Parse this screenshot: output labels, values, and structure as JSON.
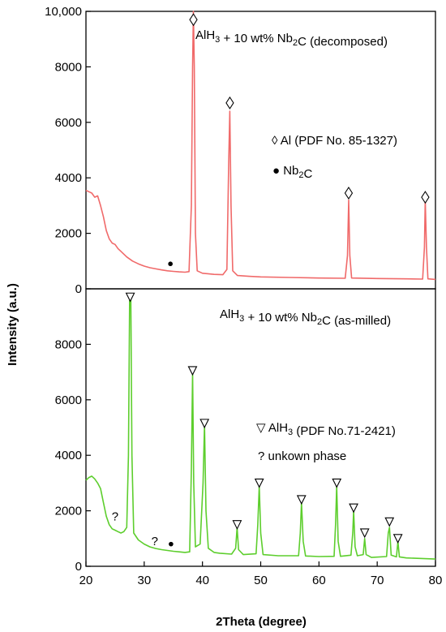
{
  "chart_data": [
    {
      "type": "line",
      "panel": "top",
      "xlabel": "2Theta (degree)",
      "ylabel": "Intensity (a.u.)",
      "xlim": [
        20,
        80
      ],
      "ylim": [
        0,
        10000
      ],
      "x_ticks": [
        "20",
        "30",
        "40",
        "50",
        "60",
        "70",
        "80"
      ],
      "y_ticks": [
        {
          "value": 0,
          "label": "0"
        },
        {
          "value": 2000,
          "label": "2000"
        },
        {
          "value": 4000,
          "label": "4000"
        },
        {
          "value": 6000,
          "label": "6000"
        },
        {
          "value": 8000,
          "label": "8000"
        },
        {
          "value": 10000,
          "label": "10,000"
        }
      ],
      "series": [
        {
          "color": "#f06a6a",
          "points": [
            [
              20.0,
              3550
            ],
            [
              20.5,
              3500
            ],
            [
              21.0,
              3450
            ],
            [
              21.5,
              3300
            ],
            [
              22.0,
              3350
            ],
            [
              22.5,
              3000
            ],
            [
              23.0,
              2600
            ],
            [
              23.5,
              2100
            ],
            [
              24.0,
              1800
            ],
            [
              24.5,
              1650
            ],
            [
              25.0,
              1600
            ],
            [
              25.5,
              1450
            ],
            [
              26.0,
              1350
            ],
            [
              27.0,
              1150
            ],
            [
              28.0,
              1000
            ],
            [
              29.0,
              900
            ],
            [
              30.0,
              820
            ],
            [
              31.0,
              760
            ],
            [
              32.0,
              720
            ],
            [
              33.0,
              680
            ],
            [
              34.0,
              650
            ],
            [
              35.0,
              630
            ],
            [
              36.0,
              610
            ],
            [
              37.0,
              600
            ],
            [
              37.7,
              620
            ],
            [
              38.1,
              3000
            ],
            [
              38.3,
              8000
            ],
            [
              38.45,
              10000
            ],
            [
              38.6,
              8000
            ],
            [
              38.8,
              2000
            ],
            [
              39.1,
              650
            ],
            [
              40.0,
              560
            ],
            [
              42.0,
              520
            ],
            [
              43.5,
              510
            ],
            [
              44.2,
              700
            ],
            [
              44.5,
              4500
            ],
            [
              44.7,
              6400
            ],
            [
              44.9,
              3000
            ],
            [
              45.2,
              650
            ],
            [
              46.0,
              480
            ],
            [
              48.0,
              450
            ],
            [
              50.0,
              430
            ],
            [
              55.0,
              410
            ],
            [
              60.0,
              390
            ],
            [
              64.5,
              380
            ],
            [
              64.9,
              1200
            ],
            [
              65.1,
              3200
            ],
            [
              65.3,
              1200
            ],
            [
              65.6,
              390
            ],
            [
              70.0,
              370
            ],
            [
              75.0,
              360
            ],
            [
              77.8,
              350
            ],
            [
              78.1,
              1500
            ],
            [
              78.25,
              3200
            ],
            [
              78.45,
              1500
            ],
            [
              78.7,
              360
            ],
            [
              80.0,
              340
            ]
          ]
        }
      ],
      "annotations": [
        {
          "marker": "◊",
          "x": 38.45,
          "y": 9700
        },
        {
          "marker": "◊",
          "x": 44.7,
          "y": 6700
        },
        {
          "marker": "◊",
          "x": 65.1,
          "y": 3450
        },
        {
          "marker": "◊",
          "x": 78.25,
          "y": 3300
        },
        {
          "marker": "●",
          "x": 34.5,
          "y": 900
        }
      ],
      "labels": {
        "sample": "AlH₃ + 10 wt% Nb₂C (decomposed)",
        "phase1": "◊ Al (PDF No. 85-1327)",
        "phase2": "●  Nb₂C"
      }
    },
    {
      "type": "line",
      "panel": "bottom",
      "xlabel": "2Theta (degree)",
      "ylabel": "Intensity (a.u.)",
      "xlim": [
        20,
        80
      ],
      "ylim": [
        0,
        10000
      ],
      "x_ticks": [
        "20",
        "30",
        "40",
        "50",
        "60",
        "70",
        "80"
      ],
      "y_ticks": [
        {
          "value": 0,
          "label": "0"
        },
        {
          "value": 2000,
          "label": "2000"
        },
        {
          "value": 4000,
          "label": "4000"
        },
        {
          "value": 6000,
          "label": "6000"
        },
        {
          "value": 8000,
          "label": "8000"
        }
      ],
      "series": [
        {
          "color": "#5dce2d",
          "points": [
            [
              20.0,
              3100
            ],
            [
              20.5,
              3200
            ],
            [
              21.0,
              3250
            ],
            [
              21.5,
              3150
            ],
            [
              22.0,
              3000
            ],
            [
              22.5,
              2800
            ],
            [
              23.0,
              2300
            ],
            [
              23.5,
              1800
            ],
            [
              24.0,
              1500
            ],
            [
              24.5,
              1350
            ],
            [
              25.0,
              1300
            ],
            [
              25.5,
              1250
            ],
            [
              26.0,
              1200
            ],
            [
              26.5,
              1250
            ],
            [
              27.0,
              1400
            ],
            [
              27.3,
              4000
            ],
            [
              27.5,
              9800
            ],
            [
              27.7,
              9800
            ],
            [
              27.9,
              4000
            ],
            [
              28.2,
              1200
            ],
            [
              29.0,
              950
            ],
            [
              30.0,
              800
            ],
            [
              31.0,
              700
            ],
            [
              32.0,
              640
            ],
            [
              33.0,
              600
            ],
            [
              34.0,
              570
            ],
            [
              35.0,
              540
            ],
            [
              36.0,
              520
            ],
            [
              37.0,
              500
            ],
            [
              37.8,
              520
            ],
            [
              38.1,
              3500
            ],
            [
              38.3,
              7000
            ],
            [
              38.5,
              3000
            ],
            [
              38.8,
              700
            ],
            [
              39.6,
              800
            ],
            [
              40.1,
              3000
            ],
            [
              40.35,
              5100
            ],
            [
              40.6,
              2000
            ],
            [
              41.0,
              650
            ],
            [
              42.0,
              500
            ],
            [
              43.0,
              470
            ],
            [
              45.0,
              440
            ],
            [
              45.7,
              650
            ],
            [
              45.95,
              1400
            ],
            [
              46.2,
              600
            ],
            [
              47.0,
              420
            ],
            [
              49.2,
              450
            ],
            [
              49.5,
              1500
            ],
            [
              49.75,
              2900
            ],
            [
              50.0,
              1200
            ],
            [
              50.4,
              420
            ],
            [
              53.0,
              380
            ],
            [
              56.5,
              380
            ],
            [
              56.8,
              1200
            ],
            [
              57.0,
              2300
            ],
            [
              57.3,
              900
            ],
            [
              57.7,
              370
            ],
            [
              60.0,
              350
            ],
            [
              62.6,
              360
            ],
            [
              62.85,
              1500
            ],
            [
              63.05,
              2900
            ],
            [
              63.3,
              900
            ],
            [
              63.7,
              360
            ],
            [
              65.5,
              400
            ],
            [
              65.8,
              1200
            ],
            [
              65.95,
              2000
            ],
            [
              66.2,
              700
            ],
            [
              66.6,
              380
            ],
            [
              67.6,
              420
            ],
            [
              67.85,
              1000
            ],
            [
              68.1,
              420
            ],
            [
              69.0,
              320
            ],
            [
              71.6,
              350
            ],
            [
              71.9,
              1200
            ],
            [
              72.1,
              1400
            ],
            [
              72.4,
              400
            ],
            [
              73.3,
              340
            ],
            [
              73.55,
              900
            ],
            [
              73.8,
              340
            ],
            [
              75.0,
              300
            ],
            [
              80.0,
              260
            ]
          ]
        }
      ],
      "annotations": [
        {
          "marker": "▽",
          "x": 27.6,
          "y": 9700
        },
        {
          "marker": "▽",
          "x": 38.3,
          "y": 7050
        },
        {
          "marker": "▽",
          "x": 40.35,
          "y": 5150
        },
        {
          "marker": "▽",
          "x": 45.95,
          "y": 1500
        },
        {
          "marker": "▽",
          "x": 49.75,
          "y": 3000
        },
        {
          "marker": "▽",
          "x": 57.0,
          "y": 2400
        },
        {
          "marker": "▽",
          "x": 63.05,
          "y": 3000
        },
        {
          "marker": "▽",
          "x": 65.95,
          "y": 2100
        },
        {
          "marker": "▽",
          "x": 67.85,
          "y": 1200
        },
        {
          "marker": "▽",
          "x": 72.1,
          "y": 1600
        },
        {
          "marker": "▽",
          "x": 73.55,
          "y": 1000
        },
        {
          "marker": "?",
          "x": 25.0,
          "y": 1800
        },
        {
          "marker": "?",
          "x": 31.8,
          "y": 900
        },
        {
          "marker": "●",
          "x": 34.6,
          "y": 800
        }
      ],
      "labels": {
        "sample": "AlH₃ + 10 wt% Nb₂C (as-milled)",
        "phase1": "▽ AlH₃ (PDF No.71-2421)",
        "phase2": "? unkown phase"
      }
    }
  ]
}
